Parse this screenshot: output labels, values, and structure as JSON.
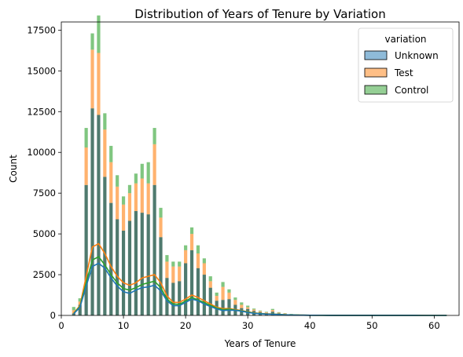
{
  "chart_data": {
    "type": "bar",
    "title": "Distribution of Years of Tenure by Variation",
    "xlabel": "Years of Tenure",
    "ylabel": "Count",
    "xlim": [
      0,
      64
    ],
    "ylim": [
      0,
      18000
    ],
    "xticks": [
      0,
      10,
      20,
      30,
      40,
      50,
      60
    ],
    "yticks": [
      0,
      2500,
      5000,
      7500,
      10000,
      12500,
      15000,
      17500
    ],
    "grid": false,
    "stacked": true,
    "legend": {
      "title": "variation",
      "placement": "top-right",
      "entries": [
        "Unknown",
        "Test",
        "Control"
      ]
    },
    "colors": {
      "Unknown": "#1f77b4",
      "Test": "#ff7f0e",
      "Control": "#2ca02c",
      "bar_overlap": "#4f7a6e"
    },
    "x": [
      2,
      3,
      4,
      5,
      6,
      7,
      8,
      9,
      10,
      11,
      12,
      13,
      14,
      15,
      16,
      17,
      18,
      19,
      20,
      21,
      22,
      23,
      24,
      25,
      26,
      27,
      28,
      29,
      30,
      31,
      32,
      33,
      34,
      35,
      36,
      37,
      38,
      39,
      40,
      41,
      42,
      43,
      44,
      45,
      46,
      47,
      48,
      49,
      50,
      51,
      52,
      53,
      54,
      55,
      56,
      57,
      58,
      59,
      60,
      61,
      62
    ],
    "series": [
      {
        "name": "Unknown",
        "values": [
          120,
          650,
          8000,
          12700,
          12300,
          8500,
          6900,
          5900,
          5200,
          5800,
          6400,
          6300,
          6200,
          8000,
          4800,
          2300,
          2000,
          2100,
          3200,
          4000,
          2900,
          2500,
          1700,
          900,
          950,
          1000,
          650,
          450,
          400,
          280,
          200,
          150,
          230,
          130,
          80,
          60,
          40,
          30,
          25,
          20,
          18,
          15,
          12,
          10,
          9,
          8,
          7,
          6,
          5,
          5,
          4,
          4,
          3,
          3,
          3,
          2,
          2,
          2,
          2,
          1,
          1
        ],
        "kde": [
          100,
          500,
          1800,
          3000,
          3200,
          2900,
          2300,
          1800,
          1450,
          1350,
          1550,
          1700,
          1750,
          1850,
          1500,
          900,
          600,
          600,
          800,
          1000,
          900,
          700,
          550,
          400,
          300,
          320,
          310,
          260,
          180,
          130,
          100,
          80,
          70,
          50,
          35,
          25,
          18,
          14,
          10,
          8,
          6,
          5,
          4,
          3,
          3,
          2,
          2,
          2,
          1,
          1,
          1,
          1,
          1,
          1,
          1,
          1,
          0,
          0,
          0,
          0,
          0
        ]
      },
      {
        "name": "Test",
        "values": [
          200,
          200,
          2300,
          3600,
          3800,
          2900,
          2500,
          2000,
          1600,
          1700,
          1700,
          2100,
          1900,
          2500,
          1200,
          1000,
          1000,
          900,
          800,
          1000,
          900,
          700,
          400,
          300,
          800,
          400,
          300,
          200,
          100,
          80,
          60,
          40,
          100,
          40,
          40,
          20,
          15,
          10,
          8,
          5,
          4,
          4,
          3,
          3,
          2,
          2,
          2,
          2,
          1,
          1,
          1,
          1,
          1,
          1,
          1,
          1,
          1,
          1,
          1,
          1,
          1
        ],
        "kde": [
          150,
          600,
          2400,
          4200,
          4400,
          3800,
          3000,
          2400,
          2000,
          1850,
          2000,
          2300,
          2400,
          2500,
          2000,
          1200,
          800,
          800,
          1000,
          1250,
          1100,
          900,
          700,
          500,
          420,
          420,
          360,
          300,
          220,
          160,
          120,
          100,
          90,
          60,
          40,
          30,
          22,
          16,
          12,
          10,
          8,
          6,
          5,
          4,
          3,
          3,
          2,
          2,
          2,
          1,
          1,
          1,
          1,
          1,
          1,
          1,
          1,
          0,
          0,
          0,
          0
        ]
      },
      {
        "name": "Control",
        "values": [
          200,
          200,
          1200,
          1000,
          2300,
          1000,
          1000,
          700,
          500,
          500,
          600,
          900,
          1300,
          1000,
          600,
          400,
          300,
          300,
          300,
          400,
          500,
          300,
          300,
          200,
          300,
          200,
          150,
          150,
          100,
          60,
          40,
          30,
          70,
          30,
          20,
          15,
          10,
          8,
          6,
          5,
          4,
          3,
          3,
          2,
          2,
          2,
          2,
          1,
          1,
          1,
          1,
          1,
          1,
          1,
          1,
          1,
          1,
          1,
          1,
          1,
          1
        ],
        "kde": [
          120,
          550,
          2000,
          3400,
          3600,
          3100,
          2500,
          2000,
          1650,
          1550,
          1700,
          1900,
          2000,
          2100,
          1700,
          1000,
          700,
          680,
          880,
          1100,
          950,
          780,
          620,
          450,
          360,
          380,
          330,
          280,
          200,
          140,
          110,
          90,
          80,
          55,
          38,
          28,
          20,
          15,
          11,
          9,
          7,
          5,
          4,
          3,
          3,
          2,
          2,
          2,
          1,
          1,
          1,
          1,
          1,
          1,
          1,
          1,
          0,
          0,
          0,
          0,
          0
        ]
      }
    ]
  }
}
